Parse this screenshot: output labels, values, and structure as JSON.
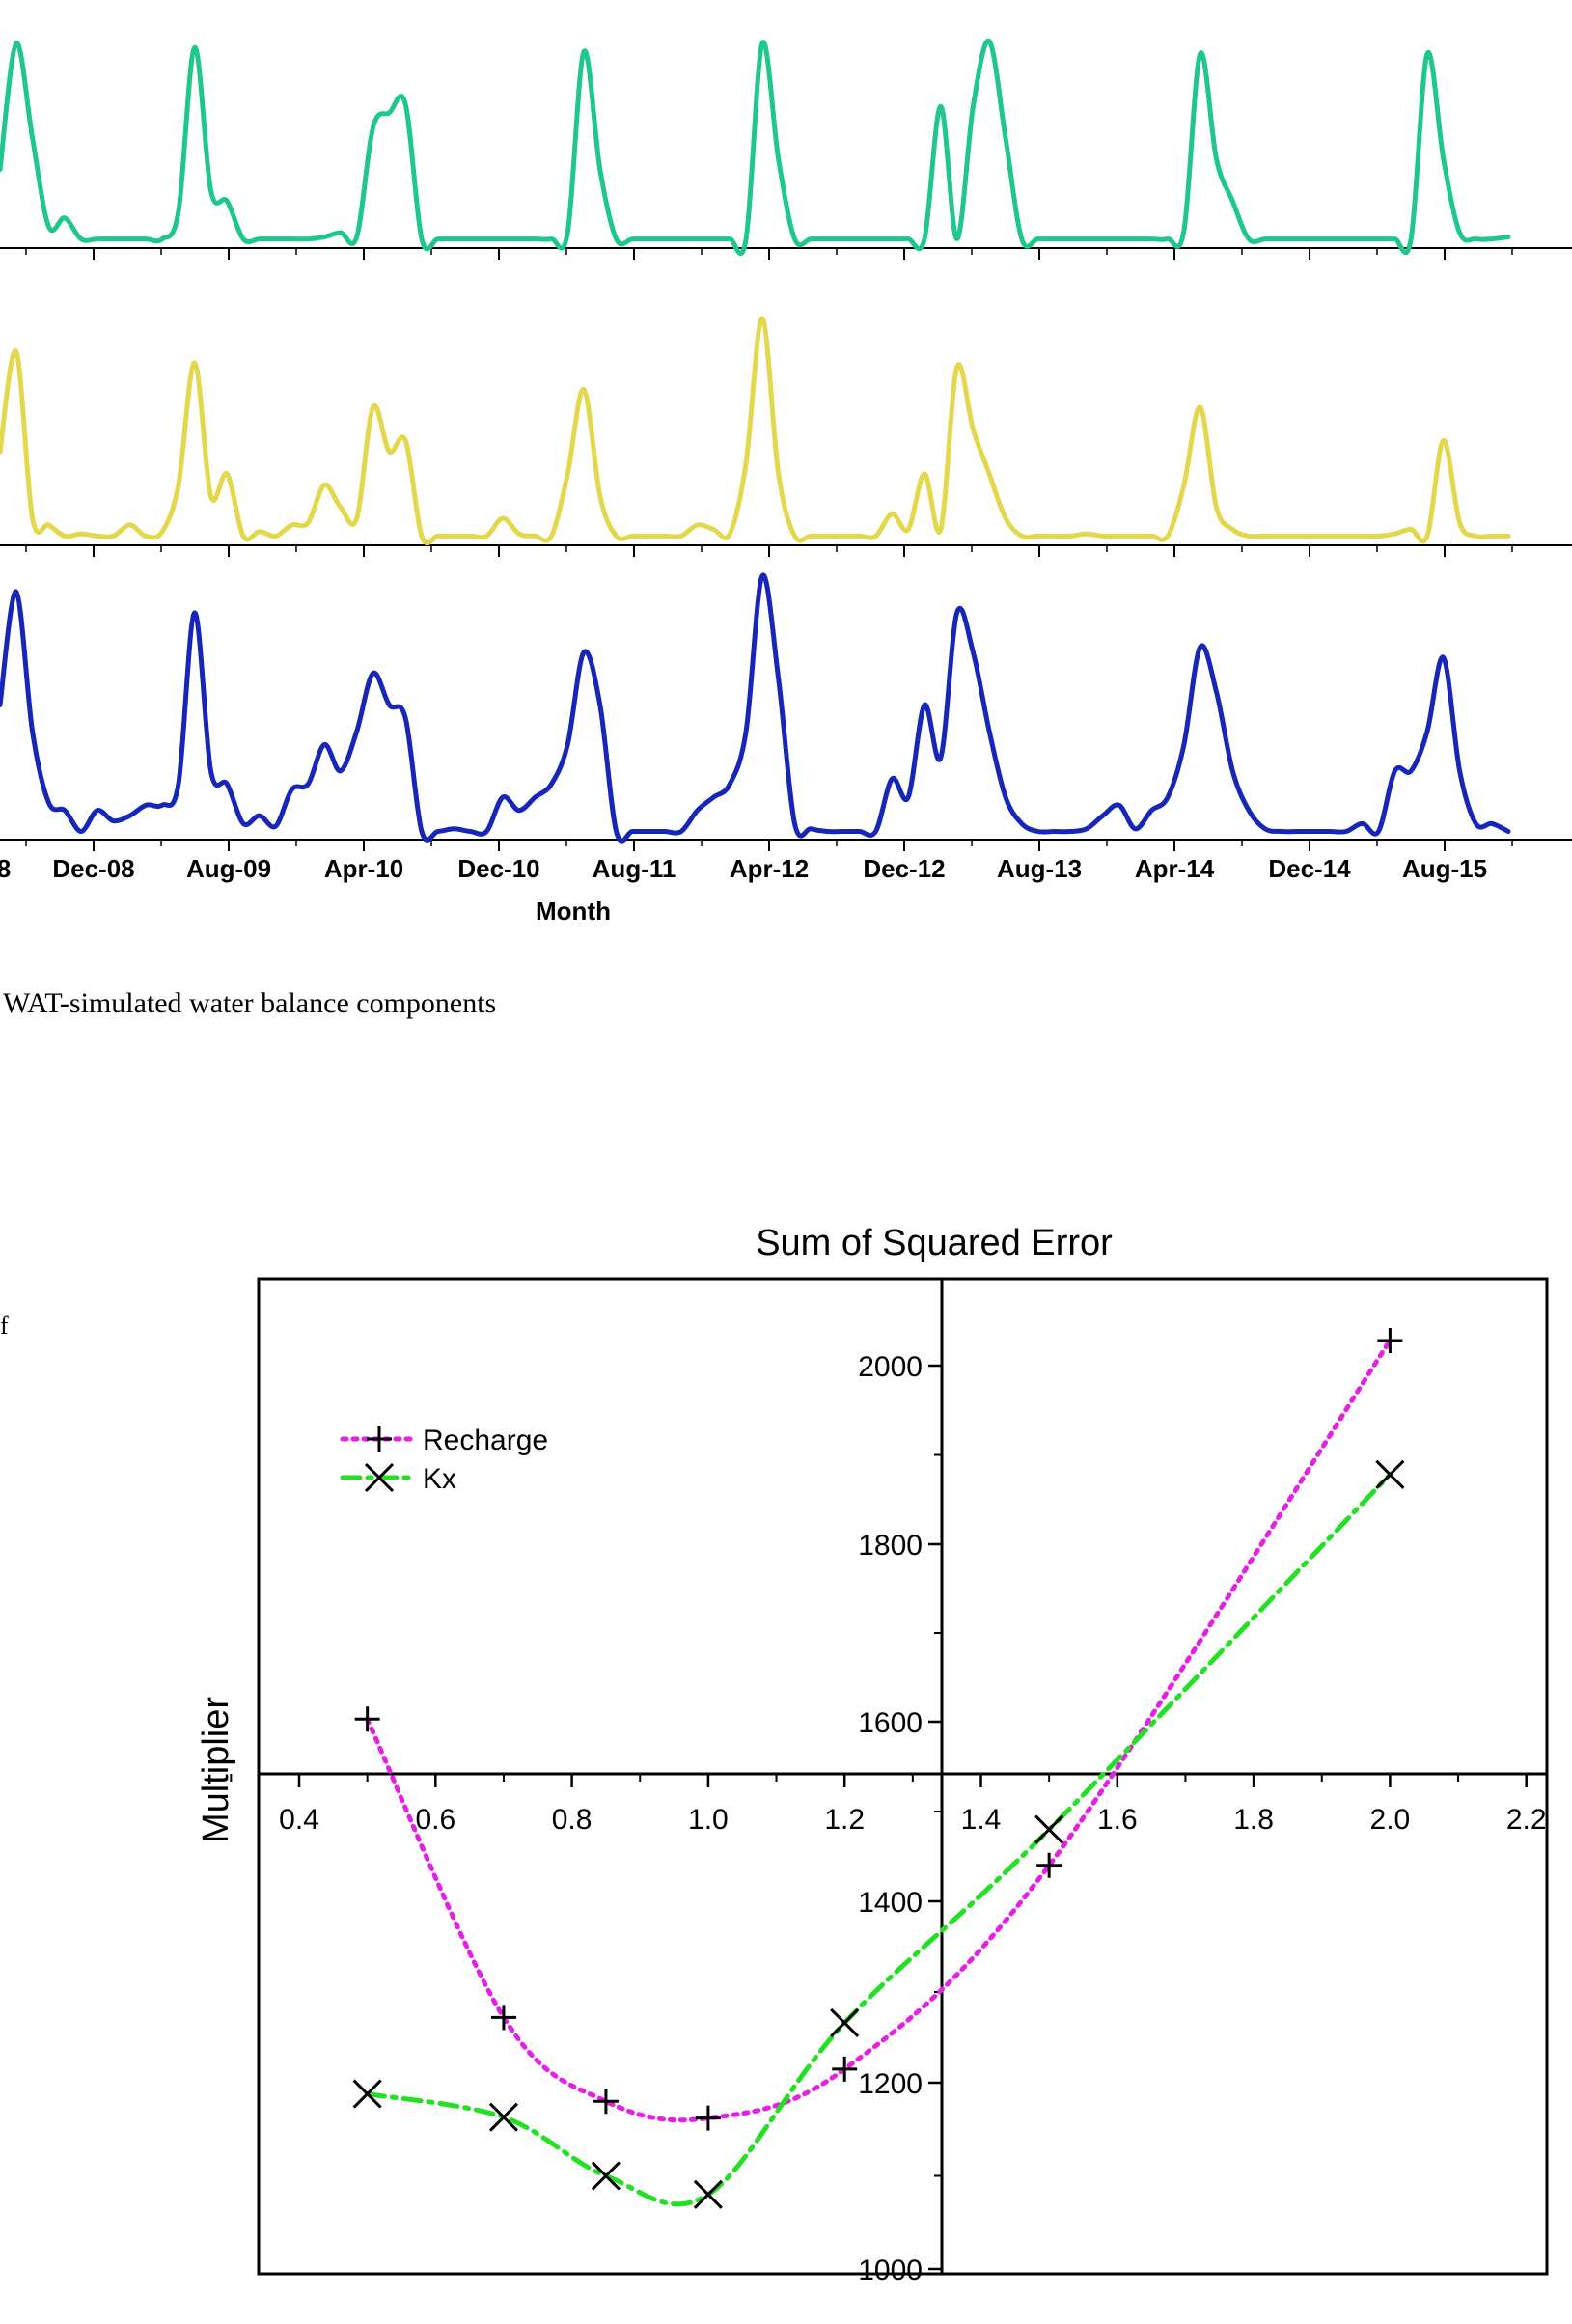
{
  "chart_data": [
    {
      "type": "line",
      "xlabel": "Month",
      "x_tick_labels": [
        "Dec-08",
        "Aug-09",
        "Apr-10",
        "Dec-10",
        "Aug-11",
        "Apr-12",
        "Dec-12",
        "Aug-13",
        "Apr-14",
        "Dec-14",
        "Aug-15"
      ],
      "x_tick_label_partial": "8",
      "series": [
        {
          "color": "#1ec88a",
          "values": [
            0.35,
            0.95,
            0.5,
            0.08,
            0.12,
            0.02,
            0.02,
            0.02,
            0.02,
            0.02,
            0.02,
            0.15,
            0.93,
            0.25,
            0.2,
            0.02,
            0.02,
            0.02,
            0.02,
            0.02,
            0.03,
            0.05,
            0.03,
            0.55,
            0.62,
            0.66,
            0.02,
            0.02,
            0.02,
            0.02,
            0.02,
            0.02,
            0.02,
            0.02,
            0.02,
            0.05,
            0.91,
            0.35,
            0.02,
            0.02,
            0.02,
            0.02,
            0.02,
            0.02,
            0.02,
            0.02,
            0.02,
            0.95,
            0.4,
            0.02,
            0.02,
            0.02,
            0.02,
            0.02,
            0.02,
            0.02,
            0.02,
            0.02,
            0.65,
            0.02,
            0.65,
            0.96,
            0.5,
            0.02,
            0.02,
            0.02,
            0.02,
            0.02,
            0.02,
            0.02,
            0.02,
            0.02,
            0.02,
            0.06,
            0.9,
            0.4,
            0.2,
            0.02,
            0.02,
            0.02,
            0.02,
            0.02,
            0.02,
            0.02,
            0.02,
            0.02,
            0.02,
            0.02,
            0.9,
            0.4,
            0.05,
            0.02,
            0.02,
            0.03
          ]
        },
        {
          "color": "#e3d84c",
          "values": [
            0.4,
            0.85,
            0.1,
            0.07,
            0.02,
            0.03,
            0.02,
            0.02,
            0.07,
            0.02,
            0.04,
            0.25,
            0.8,
            0.2,
            0.3,
            0.02,
            0.04,
            0.02,
            0.07,
            0.08,
            0.25,
            0.15,
            0.1,
            0.6,
            0.4,
            0.45,
            0.02,
            0.02,
            0.02,
            0.02,
            0.02,
            0.1,
            0.03,
            0.02,
            0.02,
            0.3,
            0.68,
            0.2,
            0.02,
            0.02,
            0.02,
            0.02,
            0.02,
            0.07,
            0.05,
            0.03,
            0.35,
            1.0,
            0.3,
            0.02,
            0.02,
            0.02,
            0.02,
            0.02,
            0.02,
            0.12,
            0.05,
            0.3,
            0.05,
            0.78,
            0.5,
            0.3,
            0.1,
            0.02,
            0.02,
            0.02,
            0.02,
            0.03,
            0.02,
            0.02,
            0.02,
            0.02,
            0.02,
            0.25,
            0.6,
            0.15,
            0.05,
            0.02,
            0.02,
            0.02,
            0.02,
            0.02,
            0.02,
            0.02,
            0.02,
            0.02,
            0.03,
            0.05,
            0.02,
            0.45,
            0.08,
            0.02,
            0.02,
            0.02
          ]
        },
        {
          "color": "#1626b8",
          "values": [
            0.5,
            0.93,
            0.4,
            0.13,
            0.1,
            0.02,
            0.1,
            0.06,
            0.08,
            0.12,
            0.12,
            0.2,
            0.85,
            0.25,
            0.2,
            0.05,
            0.08,
            0.04,
            0.18,
            0.2,
            0.35,
            0.25,
            0.4,
            0.62,
            0.5,
            0.45,
            0.02,
            0.02,
            0.03,
            0.02,
            0.02,
            0.15,
            0.1,
            0.15,
            0.2,
            0.35,
            0.7,
            0.5,
            0.02,
            0.02,
            0.02,
            0.02,
            0.02,
            0.1,
            0.15,
            0.2,
            0.4,
            0.99,
            0.6,
            0.05,
            0.03,
            0.02,
            0.02,
            0.02,
            0.02,
            0.22,
            0.15,
            0.5,
            0.3,
            0.85,
            0.7,
            0.4,
            0.15,
            0.05,
            0.02,
            0.02,
            0.02,
            0.03,
            0.08,
            0.12,
            0.03,
            0.1,
            0.15,
            0.35,
            0.72,
            0.55,
            0.25,
            0.1,
            0.03,
            0.02,
            0.02,
            0.02,
            0.02,
            0.02,
            0.05,
            0.02,
            0.25,
            0.25,
            0.4,
            0.68,
            0.25,
            0.05,
            0.05,
            0.02
          ]
        }
      ]
    },
    {
      "type": "scatter",
      "title": "Sum of Squared Error",
      "ylabel": "Multiplier",
      "xlim": [
        0.2,
        2.2
      ],
      "ylim": [
        1000,
        2100
      ],
      "x_ticks": [
        "0.4",
        "0.6",
        "0.8",
        "1.0",
        "1.2",
        "1.4",
        "1.6",
        "1.8",
        "2.0",
        "2.2"
      ],
      "y_ticks": [
        "1000",
        "1200",
        "1400",
        "1600",
        "1800",
        "2000"
      ],
      "legend_position": "top-left",
      "series": [
        {
          "name": "Recharge",
          "marker": "plus",
          "line_style": "dotted",
          "color": "#e61fe6",
          "x": [
            0.5,
            0.7,
            0.85,
            1.0,
            1.2,
            1.5,
            2.0
          ],
          "y": [
            1603,
            1272,
            1180,
            1162,
            1215,
            1440,
            2028
          ]
        },
        {
          "name": "Kx",
          "marker": "x",
          "line_style": "dash-dot",
          "color": "#22e022",
          "x": [
            0.5,
            0.7,
            0.85,
            1.0,
            1.2,
            1.5,
            2.0
          ],
          "y": [
            1188,
            1163,
            1100,
            1080,
            1266,
            1480,
            1878
          ]
        }
      ]
    }
  ],
  "caption_fragment": "WAT-simulated water balance components",
  "margin_fragment": "f"
}
